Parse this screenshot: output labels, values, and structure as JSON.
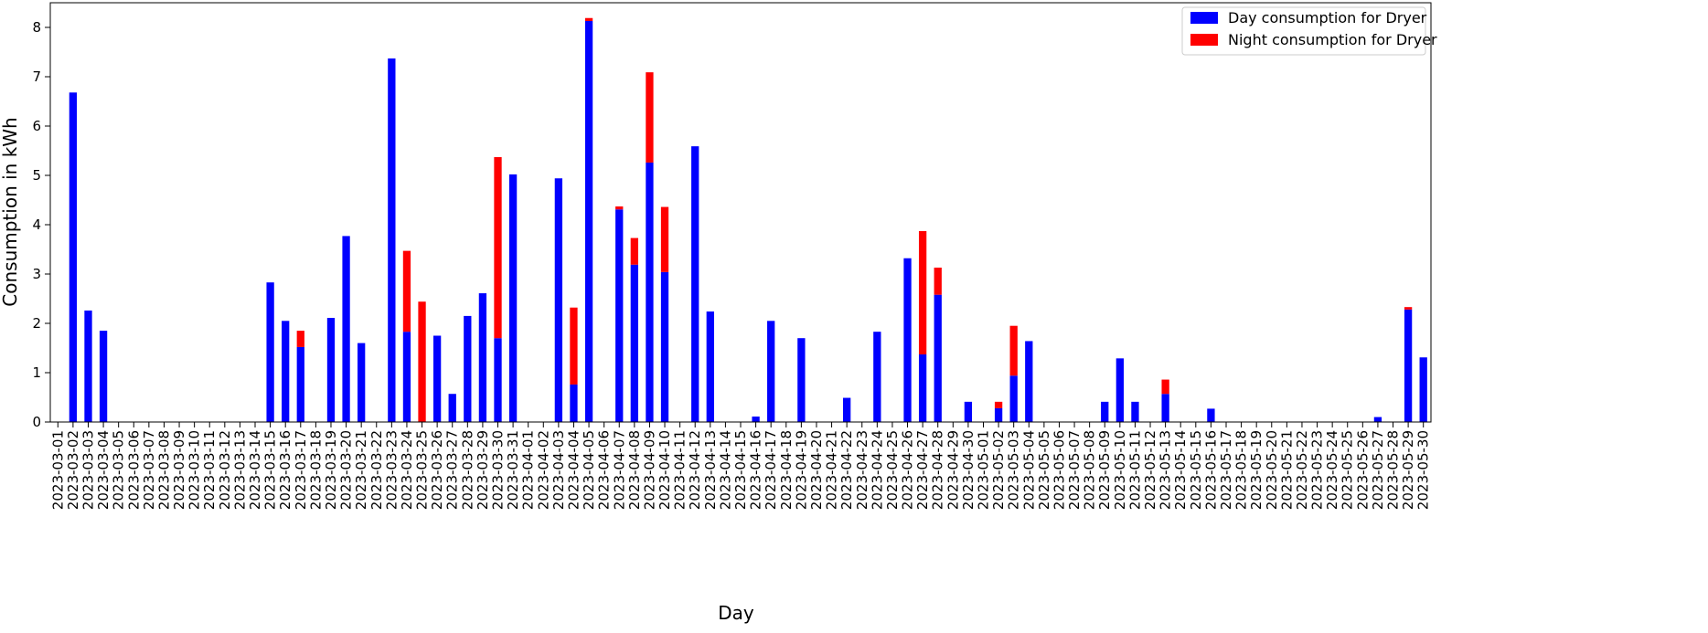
{
  "chart_data": {
    "type": "bar",
    "stacked": true,
    "title": "",
    "xlabel": "Day",
    "ylabel": "Consumption in kWh",
    "ylim": [
      0,
      8.5
    ],
    "yticks": [
      0,
      1,
      2,
      3,
      4,
      5,
      6,
      7,
      8
    ],
    "grid": false,
    "legend_position": "top-right",
    "categories": [
      "2023-03-01",
      "2023-03-02",
      "2023-03-03",
      "2023-03-04",
      "2023-03-05",
      "2023-03-06",
      "2023-03-07",
      "2023-03-08",
      "2023-03-09",
      "2023-03-10",
      "2023-03-11",
      "2023-03-12",
      "2023-03-13",
      "2023-03-14",
      "2023-03-15",
      "2023-03-16",
      "2023-03-17",
      "2023-03-18",
      "2023-03-19",
      "2023-03-20",
      "2023-03-21",
      "2023-03-22",
      "2023-03-23",
      "2023-03-24",
      "2023-03-25",
      "2023-03-26",
      "2023-03-27",
      "2023-03-28",
      "2023-03-29",
      "2023-03-30",
      "2023-03-31",
      "2023-04-01",
      "2023-04-02",
      "2023-04-03",
      "2023-04-04",
      "2023-04-05",
      "2023-04-06",
      "2023-04-07",
      "2023-04-08",
      "2023-04-09",
      "2023-04-10",
      "2023-04-11",
      "2023-04-12",
      "2023-04-13",
      "2023-04-14",
      "2023-04-15",
      "2023-04-16",
      "2023-04-17",
      "2023-04-18",
      "2023-04-19",
      "2023-04-20",
      "2023-04-21",
      "2023-04-22",
      "2023-04-23",
      "2023-04-24",
      "2023-04-25",
      "2023-04-26",
      "2023-04-27",
      "2023-04-28",
      "2023-04-29",
      "2023-04-30",
      "2023-05-01",
      "2023-05-02",
      "2023-05-03",
      "2023-05-04",
      "2023-05-05",
      "2023-05-06",
      "2023-05-07",
      "2023-05-08",
      "2023-05-09",
      "2023-05-10",
      "2023-05-11",
      "2023-05-12",
      "2023-05-13",
      "2023-05-14",
      "2023-05-15",
      "2023-05-16",
      "2023-05-17",
      "2023-05-18",
      "2023-05-19",
      "2023-05-20",
      "2023-05-21",
      "2023-05-22",
      "2023-05-23",
      "2023-05-24",
      "2023-05-25",
      "2023-05-26",
      "2023-05-27",
      "2023-05-28",
      "2023-05-29",
      "2023-05-30"
    ],
    "series": [
      {
        "name": "Day consumption for Dryer",
        "color": "#0000ff",
        "values": [
          0,
          6.68,
          2.26,
          1.85,
          0,
          0,
          0,
          0,
          0,
          0,
          0,
          0,
          0,
          0,
          2.83,
          2.05,
          1.52,
          0,
          2.11,
          3.77,
          1.6,
          0,
          7.37,
          1.83,
          0,
          1.75,
          0.57,
          2.15,
          2.61,
          1.7,
          5.02,
          0,
          0,
          4.94,
          0.76,
          8.13,
          0,
          4.31,
          3.19,
          5.26,
          3.04,
          0,
          5.59,
          2.24,
          0,
          0,
          0.11,
          2.05,
          0,
          1.7,
          0,
          0,
          0.49,
          0,
          1.83,
          0,
          3.32,
          1.37,
          2.58,
          0,
          0.41,
          0,
          0.28,
          0.94,
          1.64,
          0,
          0,
          0,
          0,
          0.41,
          1.29,
          0.41,
          0,
          0.57,
          0,
          0,
          0.27,
          0,
          0,
          0,
          0,
          0,
          0,
          0,
          0,
          0,
          0,
          0.1,
          0,
          2.28,
          1.31
        ]
      },
      {
        "name": "Night consumption for Dryer",
        "color": "#ff0000",
        "values": [
          0,
          0,
          0,
          0,
          0,
          0,
          0,
          0,
          0,
          0,
          0,
          0,
          0,
          0,
          0,
          0,
          0.33,
          0,
          0,
          0,
          0,
          0,
          0,
          1.64,
          2.44,
          0,
          0,
          0,
          0,
          3.67,
          0,
          0,
          0,
          0,
          1.56,
          0.06,
          0,
          0.06,
          0.54,
          1.83,
          1.32,
          0,
          0,
          0,
          0,
          0,
          0,
          0,
          0,
          0,
          0,
          0,
          0,
          0,
          0,
          0,
          0,
          2.5,
          0.55,
          0,
          0,
          0,
          0.13,
          1.01,
          0,
          0,
          0,
          0,
          0,
          0,
          0,
          0,
          0,
          0.29,
          0,
          0,
          0,
          0,
          0,
          0,
          0,
          0,
          0,
          0,
          0,
          0,
          0,
          0,
          0,
          0.05,
          0
        ]
      }
    ]
  }
}
